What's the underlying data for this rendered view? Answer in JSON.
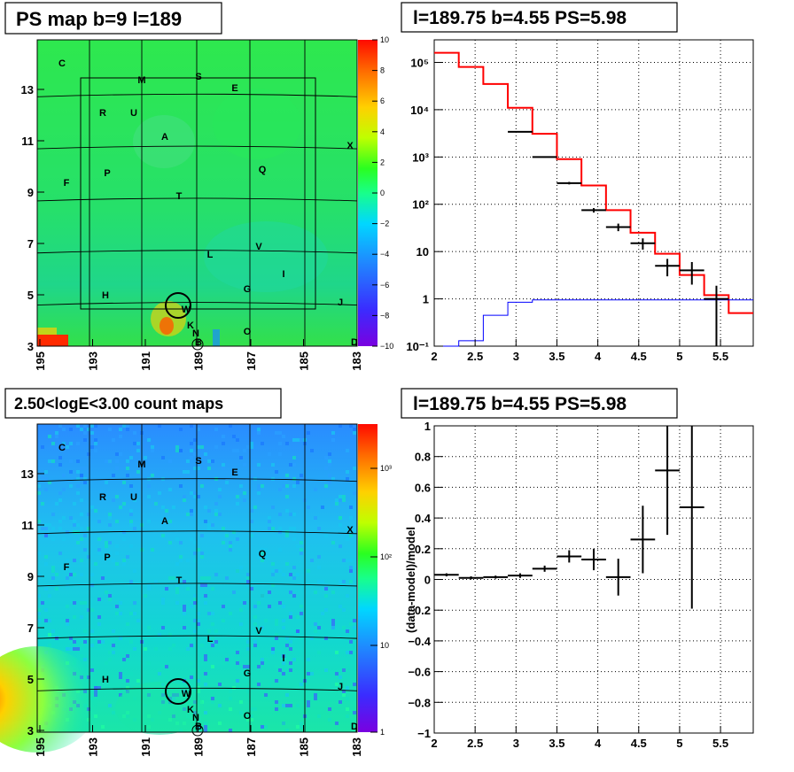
{
  "panels": {
    "tl": {
      "title": "PS map b=9 l=189",
      "type": "heatmap",
      "x_ticks": [
        "195",
        "193",
        "191",
        "189",
        "187",
        "185",
        "183"
      ],
      "y_ticks": [
        "13",
        "11",
        "9",
        "7",
        "5",
        "3"
      ],
      "colorbar_ticks": [
        "10",
        "8",
        "6",
        "4",
        "2",
        "0",
        "−2",
        "−4",
        "−6",
        "−8",
        "−10"
      ],
      "sources": [
        "C",
        "M",
        "S",
        "E",
        "R",
        "U",
        "A",
        "X",
        "F",
        "P",
        "Q",
        "T",
        "L",
        "V",
        "I",
        "H",
        "G",
        "W",
        "J",
        "K",
        "N",
        "O",
        "D",
        "B"
      ]
    },
    "tr": {
      "title": "l=189.75 b=4.55 PS=5.98",
      "type": "line",
      "log_y": true,
      "x_ticks": [
        "2",
        "2.5",
        "3",
        "3.5",
        "4",
        "4.5",
        "5",
        "5.5"
      ],
      "y_ticks": [
        "10⁻¹",
        "1",
        "10",
        "10²",
        "10³",
        "10⁴",
        "10⁵"
      ],
      "xlim": [
        2.0,
        5.9
      ],
      "ylim": [
        0.1,
        300000
      ]
    },
    "bl": {
      "title": "2.50<logE<3.00 count maps",
      "type": "heatmap",
      "x_ticks": [
        "195",
        "193",
        "191",
        "189",
        "187",
        "185",
        "183"
      ],
      "y_ticks": [
        "13",
        "11",
        "9",
        "7",
        "5",
        "3"
      ],
      "colorbar_ticks": [
        "10³",
        "10²",
        "10",
        "1"
      ],
      "sources": [
        "C",
        "M",
        "S",
        "E",
        "R",
        "U",
        "A",
        "X",
        "F",
        "P",
        "Q",
        "T",
        "L",
        "V",
        "I",
        "H",
        "G",
        "W",
        "J",
        "K",
        "N",
        "O",
        "D",
        "B"
      ]
    },
    "br": {
      "title": "l=189.75 b=4.55 PS=5.98",
      "type": "scatter",
      "ylabel": "(data-model)/model",
      "x_ticks": [
        "2",
        "2.5",
        "3",
        "3.5",
        "4",
        "4.5",
        "5",
        "5.5"
      ],
      "y_ticks": [
        "1",
        "0.8",
        "0.6",
        "0.4",
        "0.2",
        "0",
        "−0.2",
        "−0.4",
        "−0.6",
        "−0.8",
        "−1"
      ],
      "xlim": [
        2.0,
        5.9
      ],
      "ylim": [
        -1,
        1
      ]
    }
  },
  "chart_data": [
    {
      "type": "heatmap",
      "title": "PS map b=9 l=189",
      "xlim": [
        195,
        183
      ],
      "ylim": [
        3,
        15
      ],
      "zlim": [
        -10,
        10
      ],
      "sources": [
        "C",
        "M",
        "S",
        "E",
        "R",
        "U",
        "A",
        "X",
        "F",
        "P",
        "Q",
        "T",
        "L",
        "V",
        "I",
        "H",
        "G",
        "W",
        "J",
        "K",
        "N",
        "O",
        "D",
        "B"
      ]
    },
    {
      "type": "line",
      "title": "l=189.75 b=4.55 PS=5.98",
      "log_y": true,
      "xlim": [
        2.0,
        5.9
      ],
      "ylim": [
        0.1,
        300000
      ],
      "bin_edges": [
        2.0,
        2.3,
        2.6,
        2.9,
        3.2,
        3.5,
        3.8,
        4.1,
        4.4,
        4.7,
        5.0,
        5.3,
        5.6,
        5.9
      ],
      "series": [
        {
          "color": "#ff0000",
          "values": [
            160000,
            80000,
            35000,
            11000,
            3100,
            900,
            250,
            75,
            25,
            9,
            3.2,
            1.2,
            0.5
          ]
        },
        {
          "color": "#0000ff",
          "values": [
            0.1,
            0.13,
            0.45,
            0.85,
            0.95,
            0.95,
            0.95,
            0.95,
            0.95,
            0.95,
            0.95,
            0.95,
            0.95
          ]
        },
        {
          "color": "#000000",
          "values": [
            null,
            null,
            null,
            3400,
            1000,
            280,
            75,
            33,
            15,
            5,
            4,
            1
          ],
          "errors": [
            null,
            null,
            null,
            60,
            30,
            17,
            8,
            6,
            4,
            2,
            2,
            0.9
          ]
        }
      ]
    },
    {
      "type": "heatmap",
      "title": "2.50<logE<3.00 count maps",
      "xlim": [
        195,
        183
      ],
      "ylim": [
        3,
        15
      ],
      "zlim": [
        1,
        2000
      ],
      "log_z": true,
      "sources": [
        "C",
        "M",
        "S",
        "E",
        "R",
        "U",
        "A",
        "X",
        "F",
        "P",
        "Q",
        "T",
        "L",
        "V",
        "I",
        "H",
        "G",
        "W",
        "J",
        "K",
        "N",
        "O",
        "D",
        "B"
      ]
    },
    {
      "type": "scatter",
      "title": "l=189.75 b=4.55 PS=5.98",
      "ylabel": "(data-model)/model",
      "xlim": [
        2.0,
        5.9
      ],
      "ylim": [
        -1,
        1
      ],
      "points": [
        {
          "x": 2.15,
          "y": 0.03,
          "xerr": 0.15,
          "yerr": 0.01
        },
        {
          "x": 2.45,
          "y": 0.01,
          "xerr": 0.15,
          "yerr": 0.01
        },
        {
          "x": 2.75,
          "y": 0.015,
          "xerr": 0.15,
          "yerr": 0.01
        },
        {
          "x": 3.05,
          "y": 0.025,
          "xerr": 0.15,
          "yerr": 0.015
        },
        {
          "x": 3.35,
          "y": 0.07,
          "xerr": 0.15,
          "yerr": 0.02
        },
        {
          "x": 3.65,
          "y": 0.15,
          "xerr": 0.15,
          "yerr": 0.04
        },
        {
          "x": 3.95,
          "y": 0.13,
          "xerr": 0.15,
          "yerr": 0.07
        },
        {
          "x": 4.25,
          "y": 0.015,
          "xerr": 0.15,
          "yerr": 0.12
        },
        {
          "x": 4.55,
          "y": 0.26,
          "xerr": 0.15,
          "yerr": 0.22
        },
        {
          "x": 4.85,
          "y": 0.71,
          "xerr": 0.15,
          "yerr": 0.42
        },
        {
          "x": 5.15,
          "y": 0.47,
          "xerr": 0.15,
          "yerr": 0.66
        }
      ]
    }
  ]
}
